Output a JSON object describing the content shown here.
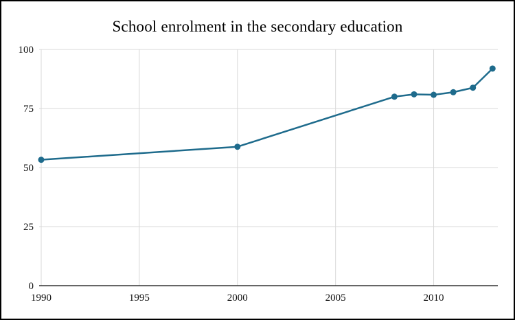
{
  "page": {
    "background": "#ffffff",
    "frame_border_color": "#000000"
  },
  "chart_data": {
    "type": "line",
    "title": "School enrolment in the secondary education",
    "x": [
      1990,
      2000,
      2008,
      2009,
      2010,
      2011,
      2012,
      2013
    ],
    "values": [
      53.3,
      58.8,
      80.0,
      81.0,
      80.8,
      81.9,
      83.8,
      91.9
    ],
    "xtick_labels": [
      "1990",
      "1995",
      "2000",
      "2005",
      "2010"
    ],
    "xtick_values": [
      1990,
      1995,
      2000,
      2005,
      2010
    ],
    "ytick_labels": [
      "0",
      "25",
      "50",
      "75",
      "100"
    ],
    "ytick_values": [
      0,
      25,
      50,
      75,
      100
    ],
    "xlim": [
      1990,
      2013.2
    ],
    "ylim": [
      0,
      100
    ],
    "grid": true,
    "legend": "none",
    "line_color": "#1e6b8c",
    "marker": "circle",
    "grid_color": "#d9d9d9",
    "axis_color": "#333333",
    "tick_text_color": "#111111"
  }
}
